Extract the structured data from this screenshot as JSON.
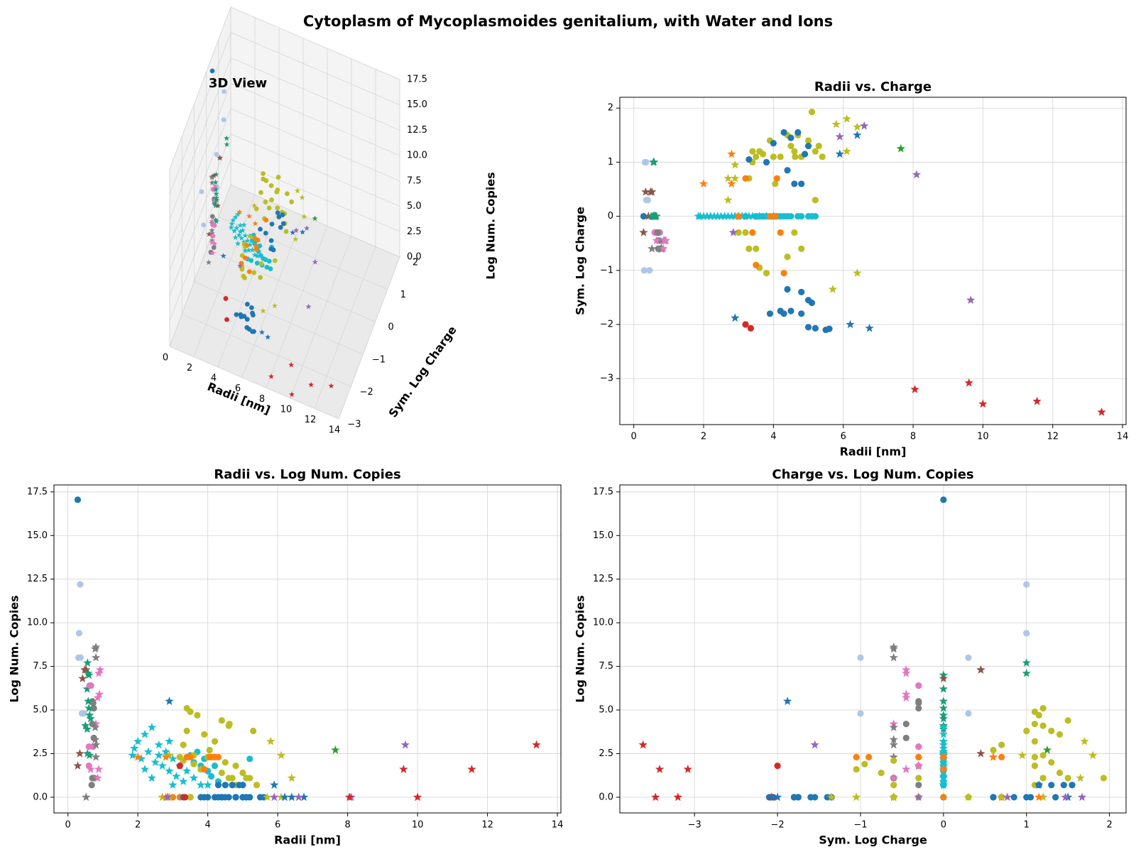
{
  "figure": {
    "title": "Cytoplasm of Mycoplasmoides genitalium, with Water and Ions"
  },
  "chart_data": [
    {
      "type": "scatter3d",
      "title": "3D View",
      "xlabel": "Radii [nm]",
      "ylabel": "Sym. Log Charge",
      "zlabel": "Log Num. Copies",
      "xticks": [
        "0",
        "2",
        "4",
        "6",
        "8",
        "10",
        "12",
        "14"
      ],
      "yticks": [
        "−3",
        "−2",
        "−1",
        "0",
        "1",
        "2"
      ],
      "zticks": [
        "0.0",
        "2.5",
        "5.0",
        "7.5",
        "10.0",
        "12.5",
        "15.0",
        "17.5"
      ],
      "xlim": [
        0,
        14
      ],
      "ylim": [
        -3.6,
        2
      ],
      "zlim": [
        0,
        17.5
      ]
    },
    {
      "type": "scatter",
      "title": "Radii vs. Charge",
      "xlabel": "Radii [nm]",
      "ylabel": "Sym. Log Charge",
      "xlim": [
        -0.4,
        14.1
      ],
      "ylim": [
        -3.85,
        2.2
      ],
      "xticks": [
        0,
        2,
        4,
        6,
        8,
        10,
        12,
        14
      ],
      "yticks": [
        -3,
        -2,
        -1,
        0,
        1,
        2
      ],
      "grid": true
    },
    {
      "type": "scatter",
      "title": "Radii vs. Log Num. Copies",
      "xlabel": "Radii [nm]",
      "ylabel": "Log Num. Copies",
      "xlim": [
        -0.4,
        14.1
      ],
      "ylim": [
        -0.9,
        17.9
      ],
      "xticks": [
        0,
        2,
        4,
        6,
        8,
        10,
        12,
        14
      ],
      "yticks": [
        0.0,
        2.5,
        5.0,
        7.5,
        10.0,
        12.5,
        15.0,
        17.5
      ],
      "grid": true
    },
    {
      "type": "scatter",
      "title": "Charge vs. Log Num. Copies",
      "xlabel": "Sym. Log Charge",
      "ylabel": "Log Num. Copies",
      "xlim": [
        -3.9,
        2.2
      ],
      "ylim": [
        -0.9,
        17.9
      ],
      "xticks": [
        -3,
        -2,
        -1,
        0,
        1,
        2
      ],
      "yticks": [
        0.0,
        2.5,
        5.0,
        7.5,
        10.0,
        12.5,
        15.0,
        17.5
      ],
      "grid": true
    }
  ],
  "points": {
    "fields": [
      "radius_nm",
      "sym_log_charge",
      "log_num_copies",
      "color",
      "marker"
    ],
    "colors": {
      "blue": "#1f77b4",
      "lightblue": "#aec7e8",
      "orange": "#ff7f0e",
      "green": "#2ca02c",
      "red": "#d62728",
      "purple": "#9467bd",
      "brown": "#8c564b",
      "pink": "#e377c2",
      "gray": "#7f7f7f",
      "olive": "#bcbd22",
      "cyan": "#17becf",
      "teal": "#1a9e77"
    },
    "data": [
      [
        0.28,
        0,
        17.05,
        "blue",
        "o"
      ],
      [
        0.35,
        1,
        12.2,
        "lightblue",
        "o"
      ],
      [
        0.32,
        1,
        9.4,
        "lightblue",
        "o"
      ],
      [
        0.3,
        -1,
        8.0,
        "lightblue",
        "o"
      ],
      [
        0.36,
        0.3,
        8.0,
        "lightblue",
        "o"
      ],
      [
        0.4,
        0.3,
        4.8,
        "lightblue",
        "o"
      ],
      [
        0.45,
        -1,
        4.8,
        "lightblue",
        "o"
      ],
      [
        0.8,
        -0.6,
        8.6,
        "gray",
        "*"
      ],
      [
        0.78,
        -0.6,
        8.5,
        "gray",
        "*"
      ],
      [
        0.8,
        -0.6,
        8.0,
        "gray",
        "*"
      ],
      [
        0.52,
        0.45,
        7.3,
        "brown",
        "*"
      ],
      [
        0.48,
        0.45,
        7.3,
        "brown",
        "*"
      ],
      [
        0.88,
        -0.45,
        7.1,
        "pink",
        "*"
      ],
      [
        0.92,
        -0.45,
        7.3,
        "pink",
        "*"
      ],
      [
        0.56,
        1,
        7.7,
        "teal",
        "*"
      ],
      [
        0.58,
        1,
        7.1,
        "teal",
        "*"
      ],
      [
        0.6,
        0,
        7.0,
        "teal",
        "*"
      ],
      [
        0.55,
        0,
        6.2,
        "teal",
        "*"
      ],
      [
        0.42,
        0,
        6.8,
        "brown",
        "*"
      ],
      [
        0.62,
        -0.3,
        6.4,
        "pink",
        "o"
      ],
      [
        0.66,
        -0.3,
        6.4,
        "pink",
        "o"
      ],
      [
        0.7,
        -0.3,
        5.5,
        "gray",
        "o"
      ],
      [
        0.72,
        -0.3,
        5.4,
        "gray",
        "o"
      ],
      [
        0.74,
        -0.3,
        5.1,
        "gray",
        "o"
      ],
      [
        0.9,
        -0.45,
        5.9,
        "pink",
        "*"
      ],
      [
        0.85,
        -0.45,
        5.7,
        "pink",
        "*"
      ],
      [
        0.58,
        0,
        5.5,
        "teal",
        "*"
      ],
      [
        0.6,
        0,
        5.1,
        "teal",
        "*"
      ],
      [
        0.62,
        0,
        4.7,
        "teal",
        "*"
      ],
      [
        0.65,
        0,
        4.5,
        "teal",
        "*"
      ],
      [
        0.8,
        -0.6,
        4.2,
        "pink",
        "*"
      ],
      [
        0.78,
        -0.6,
        4.0,
        "gray",
        "*"
      ],
      [
        0.5,
        0,
        4.1,
        "teal",
        "*"
      ],
      [
        0.55,
        0,
        3.9,
        "teal",
        "*"
      ],
      [
        0.7,
        -0.45,
        4.2,
        "gray",
        "o"
      ],
      [
        0.74,
        -0.45,
        3.4,
        "gray",
        "o"
      ],
      [
        0.72,
        -0.3,
        2.9,
        "pink",
        "o"
      ],
      [
        0.6,
        -0.3,
        2.9,
        "pink",
        "o"
      ],
      [
        0.78,
        -0.6,
        3.3,
        "gray",
        "*"
      ],
      [
        0.8,
        -0.6,
        3.0,
        "gray",
        "*"
      ],
      [
        0.56,
        0,
        2.5,
        "teal",
        "*"
      ],
      [
        0.62,
        0,
        2.4,
        "teal",
        "*"
      ],
      [
        0.34,
        0.45,
        2.5,
        "brown",
        "*"
      ],
      [
        0.8,
        -0.6,
        2.3,
        "gray",
        "*"
      ],
      [
        0.28,
        -0.3,
        1.8,
        "brown",
        "*"
      ],
      [
        0.6,
        -0.3,
        1.8,
        "pink",
        "o"
      ],
      [
        0.65,
        -0.45,
        1.6,
        "pink",
        "*"
      ],
      [
        0.88,
        -0.45,
        1.6,
        "pink",
        "*"
      ],
      [
        0.7,
        -0.6,
        1.1,
        "gray",
        "o"
      ],
      [
        0.75,
        -0.6,
        1.1,
        "gray",
        "o"
      ],
      [
        0.85,
        -0.6,
        1.1,
        "pink",
        "*"
      ],
      [
        0.68,
        -0.3,
        0.7,
        "gray",
        "o"
      ],
      [
        0.52,
        -0.6,
        0.0,
        "gray",
        "*"
      ],
      [
        2.2,
        0,
        3.6,
        "cyan",
        "*"
      ],
      [
        2.0,
        0,
        3.2,
        "cyan",
        "*"
      ],
      [
        2.4,
        0,
        4.0,
        "cyan",
        "*"
      ],
      [
        1.9,
        0,
        2.8,
        "cyan",
        "*"
      ],
      [
        2.3,
        0,
        2.6,
        "cyan",
        "*"
      ],
      [
        2.1,
        0,
        2.2,
        "cyan",
        "*"
      ],
      [
        2.6,
        0,
        2.4,
        "cyan",
        "*"
      ],
      [
        2.5,
        0,
        2.0,
        "cyan",
        "*"
      ],
      [
        2.8,
        0,
        2.6,
        "cyan",
        "*"
      ],
      [
        2.7,
        0,
        1.8,
        "cyan",
        "*"
      ],
      [
        3.0,
        0,
        2.2,
        "cyan",
        "*"
      ],
      [
        2.9,
        0,
        1.5,
        "cyan",
        "*"
      ],
      [
        3.2,
        0,
        1.8,
        "cyan",
        "*"
      ],
      [
        3.1,
        0,
        1.2,
        "cyan",
        "*"
      ],
      [
        3.4,
        0,
        1.5,
        "cyan",
        "*"
      ],
      [
        3.6,
        0,
        1.1,
        "cyan",
        "*"
      ],
      [
        3.3,
        0,
        0.9,
        "cyan",
        "*"
      ],
      [
        3.8,
        0,
        0.7,
        "cyan",
        "*"
      ],
      [
        4.0,
        0,
        0.7,
        "cyan",
        "*"
      ],
      [
        3.0,
        0,
        0.7,
        "cyan",
        "*"
      ],
      [
        2.4,
        0,
        1.1,
        "cyan",
        "*"
      ],
      [
        2.2,
        0,
        1.6,
        "cyan",
        "*"
      ],
      [
        1.85,
        0,
        2.4,
        "cyan",
        "*"
      ],
      [
        2.6,
        0,
        3.0,
        "cyan",
        "*"
      ],
      [
        2.9,
        0,
        3.2,
        "cyan",
        "*"
      ],
      [
        3.5,
        0,
        2.4,
        "cyan",
        "o"
      ],
      [
        3.6,
        0,
        2.0,
        "cyan",
        "o"
      ],
      [
        3.7,
        0,
        2.6,
        "cyan",
        "o"
      ],
      [
        3.8,
        0,
        1.8,
        "cyan",
        "o"
      ],
      [
        3.9,
        0,
        2.2,
        "cyan",
        "o"
      ],
      [
        4.0,
        0,
        1.5,
        "cyan",
        "o"
      ],
      [
        4.1,
        0,
        1.2,
        "cyan",
        "o"
      ],
      [
        4.2,
        0,
        1.8,
        "cyan",
        "o"
      ],
      [
        4.3,
        0,
        0.9,
        "cyan",
        "o"
      ],
      [
        4.5,
        0,
        0.7,
        "cyan",
        "o"
      ],
      [
        4.7,
        0,
        0.7,
        "cyan",
        "o"
      ],
      [
        5.0,
        0,
        0.7,
        "cyan",
        "o"
      ],
      [
        5.1,
        0,
        0.0,
        "cyan",
        "o"
      ],
      [
        5.2,
        0,
        2.2,
        "cyan",
        "o"
      ],
      [
        4.0,
        0,
        0.0,
        "cyan",
        "o"
      ],
      [
        3.5,
        0,
        0.0,
        "cyan",
        "o"
      ],
      [
        3.2,
        0,
        0.0,
        "cyan",
        "o"
      ],
      [
        4.4,
        0,
        0.0,
        "cyan",
        "o"
      ],
      [
        4.8,
        0,
        0.0,
        "cyan",
        "o"
      ],
      [
        3.4,
        1.2,
        5.1,
        "olive",
        "o"
      ],
      [
        3.5,
        1.1,
        4.9,
        "olive",
        "o"
      ],
      [
        3.7,
        1.15,
        4.7,
        "olive",
        "o"
      ],
      [
        4.4,
        1.5,
        4.4,
        "olive",
        "o"
      ],
      [
        4.6,
        1.2,
        4.1,
        "olive",
        "o"
      ],
      [
        4.62,
        1.1,
        4.2,
        "olive",
        "o"
      ],
      [
        5.3,
        1.3,
        3.8,
        "olive",
        "o"
      ],
      [
        3.4,
        1.0,
        3.8,
        "olive",
        "o"
      ],
      [
        3.9,
        1.4,
        3.6,
        "olive",
        "o"
      ],
      [
        4.2,
        1.1,
        3.2,
        "olive",
        "o"
      ],
      [
        3.3,
        0.7,
        3.0,
        "olive",
        "o"
      ],
      [
        4.05,
        0.6,
        2.7,
        "olive",
        "o"
      ],
      [
        3.6,
        1.2,
        2.4,
        "olive",
        "o"
      ],
      [
        4.0,
        1.1,
        2.3,
        "olive",
        "o"
      ],
      [
        4.5,
        1.3,
        2.0,
        "olive",
        "o"
      ],
      [
        4.8,
        1.1,
        1.8,
        "olive",
        "o"
      ],
      [
        5.0,
        1.4,
        1.4,
        "olive",
        "o"
      ],
      [
        5.2,
        1.2,
        1.1,
        "olive",
        "o"
      ],
      [
        4.7,
        1.5,
        1.1,
        "olive",
        "o"
      ],
      [
        5.4,
        1.1,
        0.7,
        "olive",
        "o"
      ],
      [
        3.2,
        -0.3,
        2.3,
        "olive",
        "o"
      ],
      [
        3.3,
        -0.6,
        2.1,
        "olive",
        "o"
      ],
      [
        3.6,
        -0.95,
        1.9,
        "olive",
        "o"
      ],
      [
        3.8,
        -1.05,
        1.6,
        "olive",
        "o"
      ],
      [
        4.4,
        -0.75,
        1.4,
        "olive",
        "o"
      ],
      [
        4.6,
        -0.3,
        1.1,
        "olive",
        "o"
      ],
      [
        4.8,
        -0.6,
        0.7,
        "olive",
        "o"
      ],
      [
        5.1,
        1.93,
        1.1,
        "olive",
        "o"
      ],
      [
        3.5,
        -0.6,
        0.0,
        "olive",
        "o"
      ],
      [
        3.0,
        -0.3,
        0.0,
        "olive",
        "o"
      ],
      [
        5.2,
        0.3,
        0.0,
        "olive",
        "o"
      ],
      [
        3.4,
        -0.3,
        2.3,
        "orange",
        "o"
      ],
      [
        3.5,
        -0.9,
        2.3,
        "orange",
        "o"
      ],
      [
        4.1,
        0.7,
        2.3,
        "orange",
        "o"
      ],
      [
        4.2,
        -0.3,
        2.3,
        "orange",
        "o"
      ],
      [
        4.3,
        -1.05,
        2.3,
        "orange",
        "o"
      ],
      [
        4.05,
        0,
        2.3,
        "orange",
        "o"
      ],
      [
        3.9,
        0,
        1.6,
        "orange",
        "o"
      ],
      [
        3.0,
        0,
        0.0,
        "orange",
        "o"
      ],
      [
        3.2,
        0.7,
        0.0,
        "orange",
        "o"
      ],
      [
        3.3,
        1.05,
        0.0,
        "blue",
        "o"
      ],
      [
        4.3,
        1.55,
        0.7,
        "blue",
        "o"
      ],
      [
        4.5,
        1.45,
        0.7,
        "blue",
        "o"
      ],
      [
        4.7,
        1.55,
        0.7,
        "blue",
        "o"
      ],
      [
        4.9,
        1.15,
        0.7,
        "blue",
        "o"
      ],
      [
        5.0,
        1.3,
        0.7,
        "blue",
        "o"
      ],
      [
        4.0,
        1.35,
        0.0,
        "blue",
        "o"
      ],
      [
        3.8,
        1.0,
        0.0,
        "blue",
        "o"
      ],
      [
        4.4,
        0.85,
        0.0,
        "blue",
        "o"
      ],
      [
        4.6,
        0.6,
        0.0,
        "blue",
        "o"
      ],
      [
        4.8,
        0.6,
        0.0,
        "blue",
        "o"
      ],
      [
        4.4,
        -1.35,
        0.0,
        "blue",
        "o"
      ],
      [
        4.8,
        -1.4,
        0.0,
        "blue",
        "o"
      ],
      [
        5.0,
        -1.55,
        0.0,
        "blue",
        "o"
      ],
      [
        5.1,
        -1.6,
        0.0,
        "blue",
        "o"
      ],
      [
        3.9,
        -1.8,
        0.0,
        "blue",
        "o"
      ],
      [
        4.2,
        -1.75,
        0.0,
        "blue",
        "o"
      ],
      [
        4.3,
        -1.8,
        0.0,
        "blue",
        "o"
      ],
      [
        4.5,
        -1.75,
        0.0,
        "blue",
        "o"
      ],
      [
        4.8,
        -1.8,
        0.0,
        "blue",
        "o"
      ],
      [
        5.0,
        -2.05,
        0.0,
        "blue",
        "o"
      ],
      [
        5.2,
        -2.07,
        0.0,
        "blue",
        "o"
      ],
      [
        5.5,
        -2.1,
        0.0,
        "blue",
        "o"
      ],
      [
        5.6,
        -2.08,
        0.0,
        "blue",
        "o"
      ],
      [
        3.2,
        -2.0,
        1.8,
        "red",
        "o"
      ],
      [
        3.35,
        -2.07,
        0.0,
        "red",
        "o"
      ],
      [
        2.9,
        -1.88,
        5.5,
        "blue",
        "*"
      ],
      [
        5.8,
        1.7,
        3.2,
        "olive",
        "*"
      ],
      [
        5.7,
        -1.35,
        0.0,
        "olive",
        "*"
      ],
      [
        6.1,
        1.8,
        2.4,
        "olive",
        "*"
      ],
      [
        6.4,
        1.65,
        1.1,
        "olive",
        "*"
      ],
      [
        6.1,
        1.2,
        0.0,
        "olive",
        "*"
      ],
      [
        6.4,
        -1.05,
        0.0,
        "olive",
        "*"
      ],
      [
        2.7,
        0.7,
        0.0,
        "olive",
        "*"
      ],
      [
        2.7,
        0.3,
        0.0,
        "olive",
        "*"
      ],
      [
        2.9,
        0.7,
        0.0,
        "olive",
        "*"
      ],
      [
        2.9,
        0.95,
        2.4,
        "olive",
        "*"
      ],
      [
        5.9,
        1.15,
        0.7,
        "blue",
        "*"
      ],
      [
        6.4,
        1.5,
        0.0,
        "blue",
        "*"
      ],
      [
        6.2,
        -2.0,
        0.0,
        "blue",
        "*"
      ],
      [
        6.75,
        -2.07,
        0.0,
        "blue",
        "*"
      ],
      [
        2.8,
        0.6,
        2.3,
        "orange",
        "*"
      ],
      [
        2.8,
        1.15,
        0.0,
        "orange",
        "*"
      ],
      [
        2.0,
        0.6,
        2.3,
        "orange",
        "*"
      ],
      [
        7.65,
        1.25,
        2.7,
        "green",
        "*"
      ],
      [
        9.65,
        -1.55,
        3.0,
        "purple",
        "*"
      ],
      [
        8.1,
        0.77,
        0.0,
        "purple",
        "*"
      ],
      [
        6.6,
        1.67,
        0.0,
        "purple",
        "*"
      ],
      [
        5.9,
        1.47,
        0.0,
        "purple",
        "*"
      ],
      [
        2.85,
        -0.3,
        0.0,
        "purple",
        "*"
      ],
      [
        13.4,
        -3.62,
        3.0,
        "red",
        "*"
      ],
      [
        9.6,
        -3.08,
        1.6,
        "red",
        "*"
      ],
      [
        11.55,
        -3.42,
        1.6,
        "red",
        "*"
      ],
      [
        8.05,
        -3.2,
        0.0,
        "red",
        "*"
      ],
      [
        10.0,
        -3.47,
        0.0,
        "red",
        "*"
      ]
    ]
  }
}
